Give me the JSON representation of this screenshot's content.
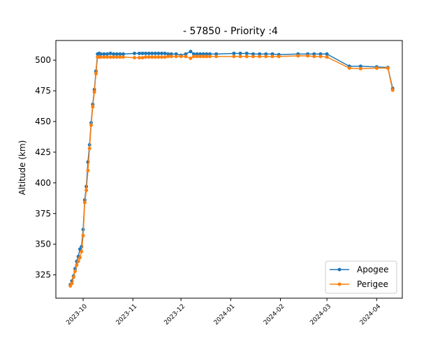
{
  "chart_data": {
    "type": "line",
    "title": "- 57850 - Priority :4",
    "xlabel": "",
    "ylabel": "Altitude (km)",
    "x_ticks": [
      "2023-10",
      "2023-11",
      "2023-12",
      "2024-01",
      "2024-02",
      "2024-03",
      "2024-04"
    ],
    "y_ticks": [
      "325",
      "350",
      "375",
      "400",
      "425",
      "450",
      "475",
      "500"
    ],
    "xlim": [
      "2023-09-14",
      "2024-04-17"
    ],
    "ylim": [
      306,
      516
    ],
    "grid": false,
    "legend_position": "lower right",
    "colors": {
      "apogee": "#1f77b4",
      "perigee": "#ff7f0e"
    },
    "series": [
      {
        "name": "Apogee",
        "x": [
          "2023-09-23",
          "2023-09-24",
          "2023-09-25",
          "2023-09-26",
          "2023-09-27",
          "2023-09-28",
          "2023-09-29",
          "2023-09-30",
          "2023-10-01",
          "2023-10-02",
          "2023-10-03",
          "2023-10-04",
          "2023-10-05",
          "2023-10-06",
          "2023-10-07",
          "2023-10-08",
          "2023-10-09",
          "2023-10-10",
          "2023-10-11",
          "2023-10-12",
          "2023-10-14",
          "2023-10-16",
          "2023-10-18",
          "2023-10-20",
          "2023-10-22",
          "2023-10-24",
          "2023-10-26",
          "2023-11-02",
          "2023-11-05",
          "2023-11-07",
          "2023-11-09",
          "2023-11-11",
          "2023-11-13",
          "2023-11-15",
          "2023-11-17",
          "2023-11-19",
          "2023-11-21",
          "2023-11-23",
          "2023-11-25",
          "2023-11-28",
          "2023-12-01",
          "2023-12-04",
          "2023-12-07",
          "2023-12-09",
          "2023-12-11",
          "2023-12-13",
          "2023-12-15",
          "2023-12-17",
          "2023-12-19",
          "2023-12-23",
          "2024-01-03",
          "2024-01-07",
          "2024-01-11",
          "2024-01-15",
          "2024-01-19",
          "2024-01-23",
          "2024-01-27",
          "2024-01-31",
          "2024-02-12",
          "2024-02-18",
          "2024-02-22",
          "2024-02-26",
          "2024-03-01",
          "2024-03-15",
          "2024-03-22",
          "2024-04-01",
          "2024-04-08",
          "2024-04-11"
        ],
        "values": [
          317,
          320,
          324,
          330,
          336,
          340,
          346,
          348,
          362,
          386,
          397,
          417,
          431,
          449,
          464,
          476,
          491,
          505,
          505.5,
          505,
          505,
          505,
          505.5,
          505,
          505,
          505,
          505,
          505.5,
          505.5,
          505.5,
          505.5,
          505.5,
          505.5,
          505.5,
          505.5,
          505.5,
          505.5,
          505,
          505,
          505,
          504,
          505,
          507,
          505,
          505,
          505,
          505,
          505,
          505,
          505,
          505.5,
          505.5,
          505.5,
          505,
          505,
          505,
          505,
          504.5,
          505,
          505,
          505,
          505,
          505,
          495,
          495,
          494.5,
          494,
          477
        ]
      },
      {
        "name": "Perigee",
        "x": [
          "2023-09-23",
          "2023-09-24",
          "2023-09-25",
          "2023-09-26",
          "2023-09-27",
          "2023-09-28",
          "2023-09-29",
          "2023-09-30",
          "2023-10-01",
          "2023-10-02",
          "2023-10-03",
          "2023-10-04",
          "2023-10-05",
          "2023-10-06",
          "2023-10-07",
          "2023-10-08",
          "2023-10-09",
          "2023-10-10",
          "2023-10-11",
          "2023-10-12",
          "2023-10-14",
          "2023-10-16",
          "2023-10-18",
          "2023-10-20",
          "2023-10-22",
          "2023-10-24",
          "2023-10-26",
          "2023-11-02",
          "2023-11-05",
          "2023-11-07",
          "2023-11-09",
          "2023-11-11",
          "2023-11-13",
          "2023-11-15",
          "2023-11-17",
          "2023-11-19",
          "2023-11-21",
          "2023-11-23",
          "2023-11-25",
          "2023-11-28",
          "2023-12-01",
          "2023-12-04",
          "2023-12-07",
          "2023-12-09",
          "2023-12-11",
          "2023-12-13",
          "2023-12-15",
          "2023-12-17",
          "2023-12-19",
          "2023-12-23",
          "2024-01-03",
          "2024-01-07",
          "2024-01-11",
          "2024-01-15",
          "2024-01-19",
          "2024-01-23",
          "2024-01-27",
          "2024-01-31",
          "2024-02-12",
          "2024-02-18",
          "2024-02-22",
          "2024-02-26",
          "2024-03-01",
          "2024-03-15",
          "2024-03-22",
          "2024-04-01",
          "2024-04-08",
          "2024-04-11"
        ],
        "values": [
          316,
          318,
          323,
          328,
          333,
          336,
          339,
          344,
          357,
          384,
          394,
          410,
          428,
          447,
          462,
          474,
          489,
          502.5,
          502.5,
          502.5,
          502.5,
          502.5,
          502.5,
          502.5,
          502.5,
          502.5,
          502.5,
          502,
          502,
          502,
          502.5,
          502.5,
          502.5,
          502.5,
          502.5,
          502.5,
          502.5,
          503,
          503,
          503,
          503,
          503,
          501.5,
          503,
          503,
          503,
          503,
          503,
          503,
          503,
          503,
          503,
          503,
          503,
          503,
          503,
          503,
          503,
          503.5,
          503.5,
          503,
          503,
          502.5,
          493.5,
          493,
          493.5,
          493.5,
          475.5
        ]
      }
    ]
  }
}
